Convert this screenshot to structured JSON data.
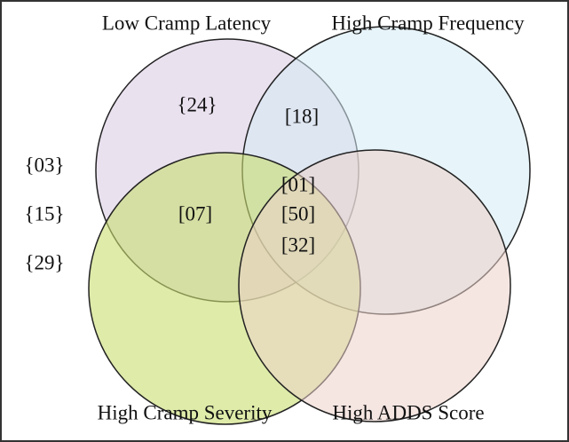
{
  "sets": [
    {
      "label": "Low Cramp Latency"
    },
    {
      "label": "High Cramp Frequency"
    },
    {
      "label": "High Cramp Severity"
    },
    {
      "label": "High ADDS Score"
    }
  ],
  "regions": [
    "{24}",
    "[18]",
    "[07]",
    "[01]",
    "[50]",
    "[32]"
  ],
  "outside": [
    "{03}",
    "{15}",
    "{29}"
  ]
}
